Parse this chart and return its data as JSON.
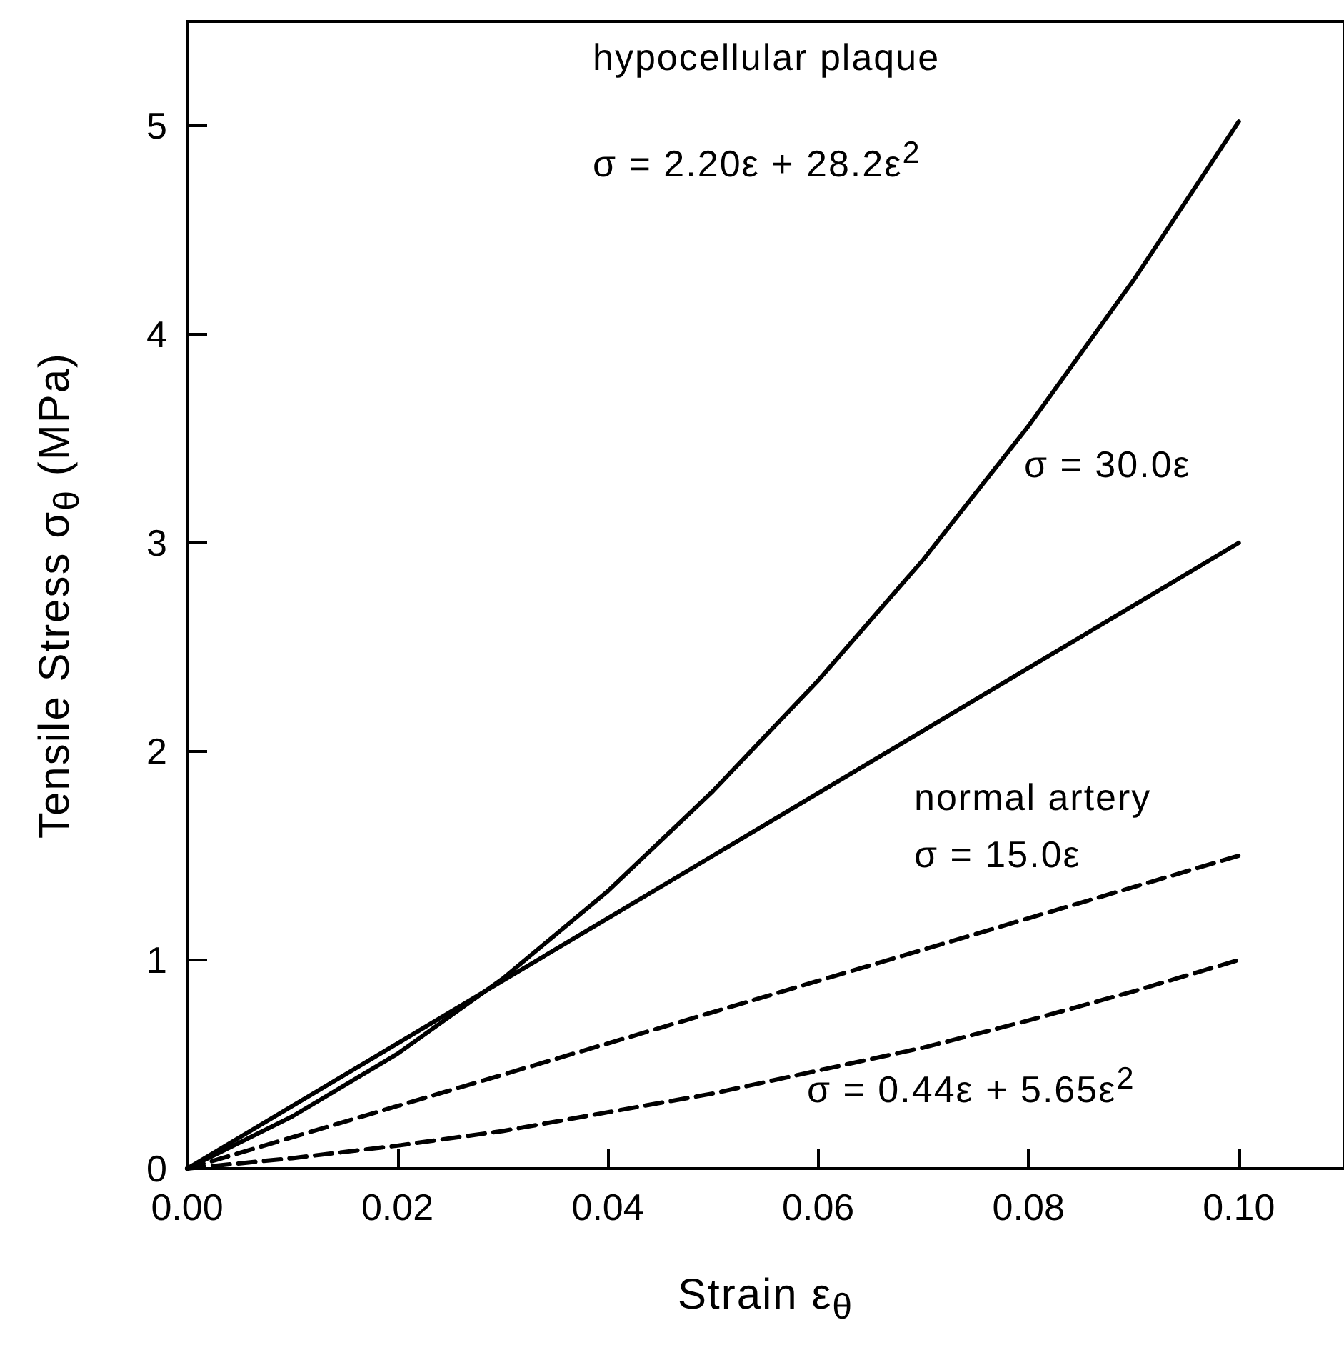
{
  "chart_data": {
    "type": "line",
    "xlabel": "Strain ε$_{θ}$",
    "ylabel": "Tensile Stress σ$_{θ}$ (MPa)",
    "x": [
      0,
      0.01,
      0.02,
      0.03,
      0.04,
      0.05,
      0.06,
      0.07,
      0.08,
      0.09,
      0.1
    ],
    "series": [
      {
        "color": "#000000",
        "line_style": "solid",
        "values": [
          0,
          0.25,
          0.55,
          0.91,
          1.33,
          1.81,
          2.34,
          2.92,
          3.56,
          4.26,
          5.02
        ]
      },
      {
        "color": "#000000",
        "line_style": "solid",
        "values": [
          0,
          0.3,
          0.6,
          0.9,
          1.2,
          1.5,
          1.8,
          2.1,
          2.4,
          2.7,
          3.0
        ]
      },
      {
        "color": "#000000",
        "line_style": "dashed",
        "values": [
          0,
          0.15,
          0.3,
          0.45,
          0.6,
          0.75,
          0.9,
          1.05,
          1.2,
          1.35,
          1.5
        ]
      },
      {
        "color": "#000000",
        "line_style": "dashed",
        "values": [
          0,
          0.05,
          0.11,
          0.18,
          0.27,
          0.36,
          0.47,
          0.58,
          0.71,
          0.85,
          1.0
        ]
      }
    ],
    "xlim": [
      0,
      0.11
    ],
    "xticks": [
      {
        "value": 0,
        "label": "0.00"
      },
      0.02,
      0.04,
      0.06,
      0.08,
      {
        "value": 0.1,
        "label": "0.10"
      }
    ],
    "ylim": [
      0,
      5.5
    ],
    "yticks": [
      0,
      1,
      2,
      3,
      4,
      5
    ],
    "grid": false,
    "marker": "none",
    "annotations": [
      "hypocellular plaque",
      "σ = 2.20ε + 28.2ε$^{2}$",
      "σ = 30.0ε",
      "normal artery",
      "σ = 15.0ε",
      "σ = 0.44ε + 5.65ε$^{2}$"
    ]
  }
}
